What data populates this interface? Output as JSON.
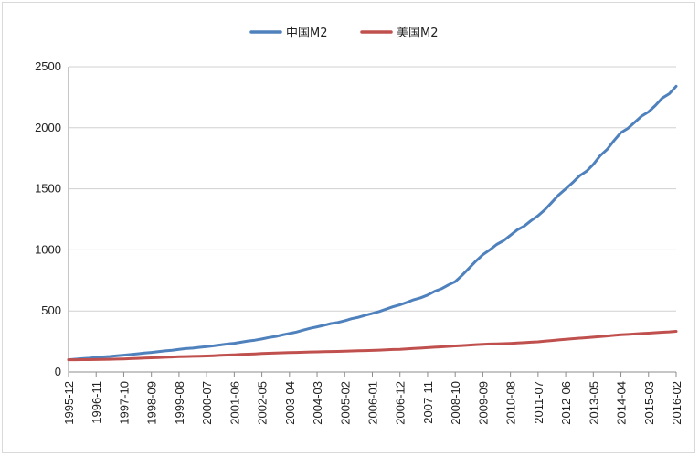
{
  "chart_data": {
    "type": "line",
    "title": "",
    "xlabel": "",
    "ylabel": "",
    "ylim": [
      0,
      2500
    ],
    "yticks": [
      0,
      500,
      1000,
      1500,
      2000,
      2500
    ],
    "grid": true,
    "legend_position": "top-center",
    "categories": [
      "1995-12",
      "1996-11",
      "1997-10",
      "1998-09",
      "1999-08",
      "2000-07",
      "2001-06",
      "2002-05",
      "2003-04",
      "2004-03",
      "2005-02",
      "2006-01",
      "2006-12",
      "2007-11",
      "2008-10",
      "2009-09",
      "2010-08",
      "2011-07",
      "2012-06",
      "2013-05",
      "2014-04",
      "2015-03",
      "2016-02"
    ],
    "series": [
      {
        "name": "中国M2",
        "color": "#4f81bd",
        "values": [
          100,
          118,
          138,
          160,
          185,
          208,
          235,
          270,
          315,
          370,
          420,
          480,
          550,
          630,
          740,
          960,
          1120,
          1280,
          1500,
          1700,
          1960,
          2130,
          2340
        ]
      },
      {
        "name": "美国M2",
        "color": "#c0504d",
        "values": [
          100,
          102,
          107,
          116,
          125,
          131,
          141,
          151,
          159,
          165,
          170,
          177,
          186,
          199,
          213,
          227,
          234,
          247,
          268,
          285,
          305,
          318,
          333
        ]
      }
    ]
  }
}
